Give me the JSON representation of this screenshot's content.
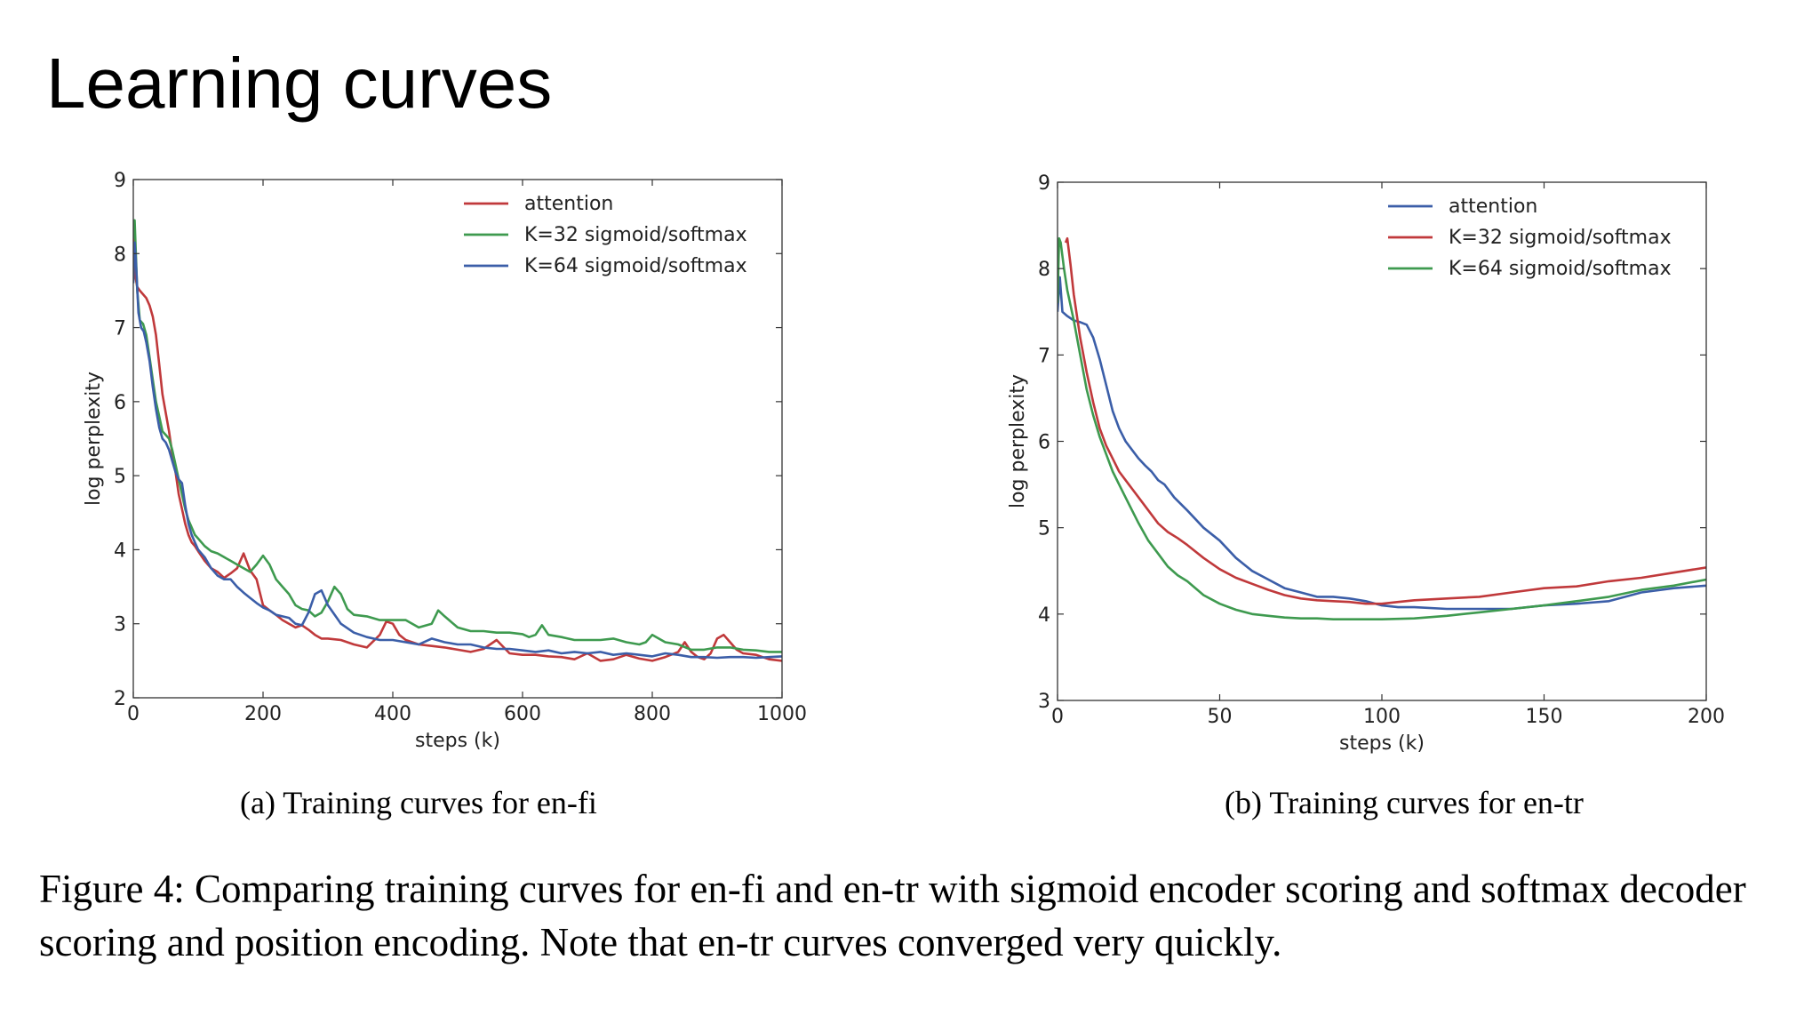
{
  "slide": {
    "title": "Learning curves"
  },
  "captions": {
    "a": "(a) Training curves for en-fi",
    "b": "(b) Training curves for en-tr",
    "figure": "Figure 4: Comparing training curves for en-fi and en-tr with sigmoid encoder scoring and softmax decoder scoring and position encoding. Note that en-tr curves converged very quickly."
  },
  "chart_data": [
    {
      "type": "line",
      "title": "",
      "xlabel": "steps (k)",
      "ylabel": "log perplexity",
      "xlim": [
        0,
        1000
      ],
      "ylim": [
        2,
        9
      ],
      "xticks": [
        0,
        200,
        400,
        600,
        800,
        1000
      ],
      "yticks": [
        2,
        3,
        4,
        5,
        6,
        7,
        8,
        9
      ],
      "grid": false,
      "legend": "top-right",
      "series": [
        {
          "name": "attention",
          "color": "#c0393b",
          "x": [
            0,
            3,
            6,
            10,
            15,
            20,
            25,
            30,
            35,
            40,
            45,
            50,
            55,
            60,
            65,
            70,
            75,
            80,
            85,
            90,
            95,
            100,
            110,
            120,
            130,
            140,
            150,
            160,
            170,
            180,
            190,
            200,
            210,
            220,
            230,
            240,
            250,
            260,
            270,
            280,
            290,
            300,
            320,
            340,
            360,
            380,
            390,
            400,
            410,
            420,
            440,
            460,
            480,
            500,
            520,
            540,
            560,
            580,
            600,
            620,
            640,
            660,
            680,
            700,
            720,
            740,
            760,
            780,
            800,
            820,
            840,
            850,
            860,
            870,
            880,
            890,
            900,
            910,
            920,
            930,
            940,
            960,
            980,
            1000
          ],
          "y": [
            8.35,
            7.7,
            7.55,
            7.5,
            7.45,
            7.4,
            7.3,
            7.15,
            6.9,
            6.5,
            6.1,
            5.85,
            5.6,
            5.3,
            5.05,
            4.75,
            4.55,
            4.35,
            4.2,
            4.1,
            4.05,
            3.98,
            3.85,
            3.75,
            3.7,
            3.62,
            3.68,
            3.75,
            3.95,
            3.72,
            3.6,
            3.25,
            3.18,
            3.12,
            3.05,
            3.0,
            2.95,
            2.98,
            2.92,
            2.85,
            2.8,
            2.8,
            2.78,
            2.72,
            2.68,
            2.85,
            3.03,
            3.0,
            2.85,
            2.78,
            2.72,
            2.7,
            2.68,
            2.65,
            2.62,
            2.66,
            2.78,
            2.6,
            2.58,
            2.58,
            2.56,
            2.55,
            2.52,
            2.6,
            2.5,
            2.52,
            2.58,
            2.53,
            2.5,
            2.55,
            2.62,
            2.75,
            2.62,
            2.55,
            2.52,
            2.6,
            2.8,
            2.85,
            2.75,
            2.65,
            2.6,
            2.58,
            2.52,
            2.5
          ]
        },
        {
          "name": "K=32 sigmoid/softmax",
          "color": "#3e9a4f",
          "x": [
            0,
            2,
            4,
            6,
            10,
            15,
            20,
            25,
            30,
            35,
            40,
            45,
            50,
            55,
            60,
            65,
            70,
            75,
            80,
            85,
            90,
            95,
            100,
            110,
            120,
            130,
            140,
            150,
            160,
            170,
            180,
            190,
            200,
            210,
            220,
            230,
            240,
            250,
            260,
            270,
            280,
            290,
            300,
            310,
            320,
            330,
            340,
            360,
            380,
            400,
            420,
            440,
            460,
            470,
            480,
            500,
            520,
            540,
            560,
            580,
            600,
            610,
            620,
            630,
            640,
            660,
            680,
            700,
            720,
            740,
            760,
            780,
            790,
            800,
            820,
            840,
            860,
            880,
            900,
            920,
            940,
            960,
            980,
            1000
          ],
          "y": [
            8.2,
            8.45,
            8.0,
            7.5,
            7.1,
            7.05,
            6.9,
            6.6,
            6.3,
            6.0,
            5.8,
            5.6,
            5.55,
            5.5,
            5.35,
            5.15,
            4.95,
            4.75,
            4.55,
            4.4,
            4.3,
            4.2,
            4.15,
            4.05,
            3.98,
            3.95,
            3.9,
            3.85,
            3.8,
            3.75,
            3.7,
            3.8,
            3.92,
            3.8,
            3.6,
            3.5,
            3.4,
            3.25,
            3.2,
            3.18,
            3.1,
            3.15,
            3.3,
            3.5,
            3.4,
            3.2,
            3.12,
            3.1,
            3.05,
            3.05,
            3.05,
            2.95,
            3.0,
            3.18,
            3.1,
            2.95,
            2.9,
            2.9,
            2.88,
            2.88,
            2.86,
            2.82,
            2.85,
            2.98,
            2.85,
            2.82,
            2.78,
            2.78,
            2.78,
            2.8,
            2.75,
            2.72,
            2.75,
            2.85,
            2.75,
            2.72,
            2.65,
            2.65,
            2.68,
            2.68,
            2.65,
            2.64,
            2.62,
            2.62
          ]
        },
        {
          "name": "K=64 sigmoid/softmax",
          "color": "#3b5ea8",
          "x": [
            0,
            2,
            4,
            8,
            12,
            16,
            20,
            25,
            30,
            35,
            40,
            45,
            50,
            55,
            60,
            65,
            70,
            75,
            80,
            85,
            90,
            95,
            100,
            110,
            120,
            130,
            140,
            150,
            160,
            170,
            180,
            190,
            200,
            210,
            220,
            230,
            240,
            250,
            260,
            270,
            280,
            290,
            300,
            320,
            340,
            360,
            380,
            400,
            420,
            440,
            460,
            480,
            500,
            520,
            540,
            560,
            580,
            600,
            620,
            640,
            660,
            680,
            700,
            720,
            740,
            760,
            780,
            800,
            820,
            840,
            860,
            880,
            900,
            920,
            940,
            960,
            980,
            1000
          ],
          "y": [
            7.6,
            8.15,
            7.9,
            7.2,
            7.0,
            6.95,
            6.8,
            6.55,
            6.2,
            5.9,
            5.65,
            5.5,
            5.45,
            5.35,
            5.2,
            5.05,
            4.95,
            4.9,
            4.6,
            4.35,
            4.2,
            4.1,
            4.0,
            3.9,
            3.75,
            3.65,
            3.6,
            3.6,
            3.5,
            3.42,
            3.35,
            3.28,
            3.22,
            3.18,
            3.12,
            3.1,
            3.08,
            3.0,
            2.98,
            3.15,
            3.4,
            3.45,
            3.25,
            3.0,
            2.88,
            2.82,
            2.78,
            2.78,
            2.75,
            2.72,
            2.8,
            2.75,
            2.72,
            2.72,
            2.68,
            2.66,
            2.66,
            2.64,
            2.62,
            2.64,
            2.6,
            2.62,
            2.6,
            2.62,
            2.58,
            2.6,
            2.58,
            2.56,
            2.6,
            2.58,
            2.55,
            2.55,
            2.54,
            2.55,
            2.55,
            2.54,
            2.55,
            2.56
          ]
        }
      ]
    },
    {
      "type": "line",
      "title": "",
      "xlabel": "steps (k)",
      "ylabel": "log perplexity",
      "xlim": [
        0,
        200
      ],
      "ylim": [
        3,
        9
      ],
      "xticks": [
        0,
        50,
        100,
        150,
        200
      ],
      "yticks": [
        3,
        4,
        5,
        6,
        7,
        8,
        9
      ],
      "grid": false,
      "legend": "top-right",
      "series": [
        {
          "name": "attention",
          "color": "#3b5ea8",
          "x": [
            0,
            0.7,
            1.5,
            3,
            5,
            7,
            9,
            11,
            13,
            15,
            17,
            19,
            21,
            23,
            25,
            27,
            29,
            31,
            33,
            36,
            40,
            45,
            50,
            55,
            60,
            65,
            70,
            75,
            80,
            85,
            90,
            95,
            100,
            105,
            110,
            120,
            130,
            140,
            150,
            160,
            170,
            180,
            190,
            200
          ],
          "y": [
            7.5,
            7.9,
            7.5,
            7.45,
            7.4,
            7.38,
            7.35,
            7.2,
            6.95,
            6.65,
            6.35,
            6.15,
            6.0,
            5.9,
            5.8,
            5.72,
            5.65,
            5.55,
            5.5,
            5.35,
            5.2,
            5.0,
            4.85,
            4.65,
            4.5,
            4.4,
            4.3,
            4.25,
            4.2,
            4.2,
            4.18,
            4.15,
            4.1,
            4.08,
            4.08,
            4.06,
            4.06,
            4.06,
            4.1,
            4.12,
            4.15,
            4.25,
            4.3,
            4.33
          ]
        },
        {
          "name": "K=32 sigmoid/softmax",
          "color": "#c0393b",
          "x": [
            2.5,
            3,
            4,
            5,
            7,
            9,
            11,
            13,
            15,
            17,
            19,
            21,
            23,
            25,
            28,
            31,
            34,
            37,
            40,
            45,
            50,
            55,
            60,
            65,
            70,
            75,
            80,
            85,
            90,
            95,
            100,
            105,
            110,
            120,
            130,
            140,
            150,
            160,
            170,
            180,
            190,
            200
          ],
          "y": [
            8.3,
            8.35,
            8.05,
            7.7,
            7.2,
            6.8,
            6.45,
            6.15,
            5.95,
            5.8,
            5.65,
            5.55,
            5.45,
            5.35,
            5.2,
            5.05,
            4.95,
            4.88,
            4.8,
            4.65,
            4.52,
            4.42,
            4.35,
            4.28,
            4.22,
            4.18,
            4.16,
            4.15,
            4.14,
            4.12,
            4.12,
            4.14,
            4.16,
            4.18,
            4.2,
            4.25,
            4.3,
            4.32,
            4.38,
            4.42,
            4.48,
            4.54
          ]
        },
        {
          "name": "K=64 sigmoid/softmax",
          "color": "#3e9a4f",
          "x": [
            0,
            0.5,
            1,
            2,
            3,
            5,
            7,
            9,
            11,
            13,
            15,
            17,
            19,
            21,
            23,
            25,
            28,
            31,
            34,
            37,
            40,
            45,
            50,
            55,
            60,
            65,
            70,
            75,
            80,
            85,
            90,
            95,
            100,
            110,
            120,
            130,
            140,
            150,
            160,
            170,
            180,
            190,
            200
          ],
          "y": [
            7.6,
            8.35,
            8.3,
            8.0,
            7.75,
            7.4,
            7.0,
            6.6,
            6.3,
            6.05,
            5.85,
            5.65,
            5.5,
            5.35,
            5.2,
            5.05,
            4.85,
            4.7,
            4.55,
            4.45,
            4.38,
            4.22,
            4.12,
            4.05,
            4.0,
            3.98,
            3.96,
            3.95,
            3.95,
            3.94,
            3.94,
            3.94,
            3.94,
            3.95,
            3.98,
            4.02,
            4.06,
            4.1,
            4.15,
            4.2,
            4.28,
            4.33,
            4.4
          ]
        }
      ]
    }
  ]
}
